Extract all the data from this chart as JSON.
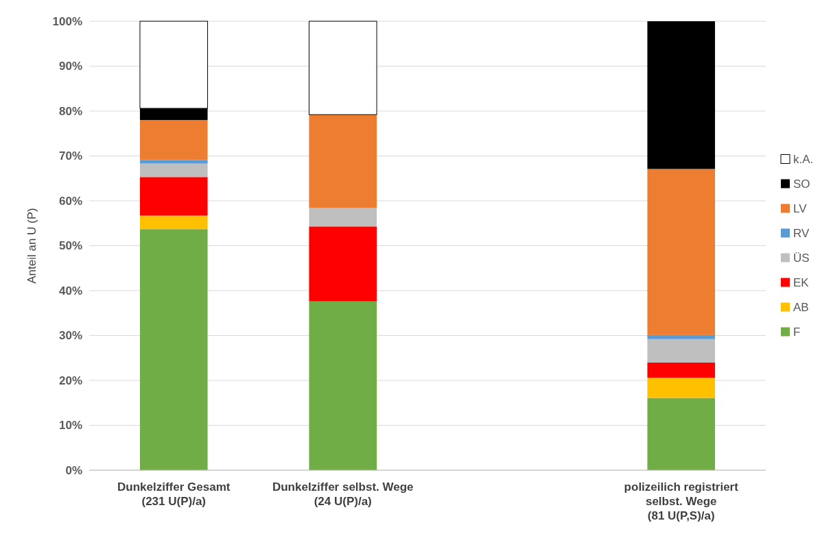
{
  "chart_data": {
    "type": "bar",
    "stacked": true,
    "ylabel": "Anteil an U (P)",
    "categories": [
      "Dunkelziffer Gesamt\n(231 U(P)/a)",
      "Dunkelziffer selbst. Wege\n(24 U(P)/a)",
      null,
      "polizeilich registriert\nselbst. Wege\n(81 U(P,S)/a)"
    ],
    "series": [
      {
        "name": "F",
        "color": "#70ad47",
        "values": [
          53.7,
          37.6,
          null,
          16.1
        ]
      },
      {
        "name": "AB",
        "color": "#ffc000",
        "values": [
          3.0,
          0,
          null,
          4.5
        ]
      },
      {
        "name": "EK",
        "color": "#ff0000",
        "values": [
          8.6,
          16.7,
          null,
          3.4
        ]
      },
      {
        "name": "ÜS",
        "color": "#bfbfbf",
        "values": [
          3.0,
          4.1,
          null,
          5.2
        ]
      },
      {
        "name": "RV",
        "color": "#5b9bd5",
        "values": [
          0.8,
          0,
          null,
          0.9
        ]
      },
      {
        "name": "LV",
        "color": "#ed7d31",
        "values": [
          8.9,
          20.8,
          null,
          37.0
        ]
      },
      {
        "name": "SO",
        "color": "#000000",
        "values": [
          2.6,
          0,
          null,
          32.9
        ]
      },
      {
        "name": "k.A.",
        "color": "#ffffff",
        "values": [
          19.4,
          20.8,
          null,
          0
        ]
      }
    ],
    "ylim": [
      0,
      100
    ],
    "yticks": [
      {
        "value": 0,
        "label": "0%"
      },
      {
        "value": 10,
        "label": "10%"
      },
      {
        "value": 20,
        "label": "20%"
      },
      {
        "value": 30,
        "label": "30%"
      },
      {
        "value": 40,
        "label": "40%"
      },
      {
        "value": 50,
        "label": "50%"
      },
      {
        "value": 60,
        "label": "60%"
      },
      {
        "value": 70,
        "label": "70%"
      },
      {
        "value": 80,
        "label": "80%"
      },
      {
        "value": 90,
        "label": "90%"
      },
      {
        "value": 100,
        "label": "100%"
      }
    ],
    "grid": "y",
    "legend": "right"
  }
}
